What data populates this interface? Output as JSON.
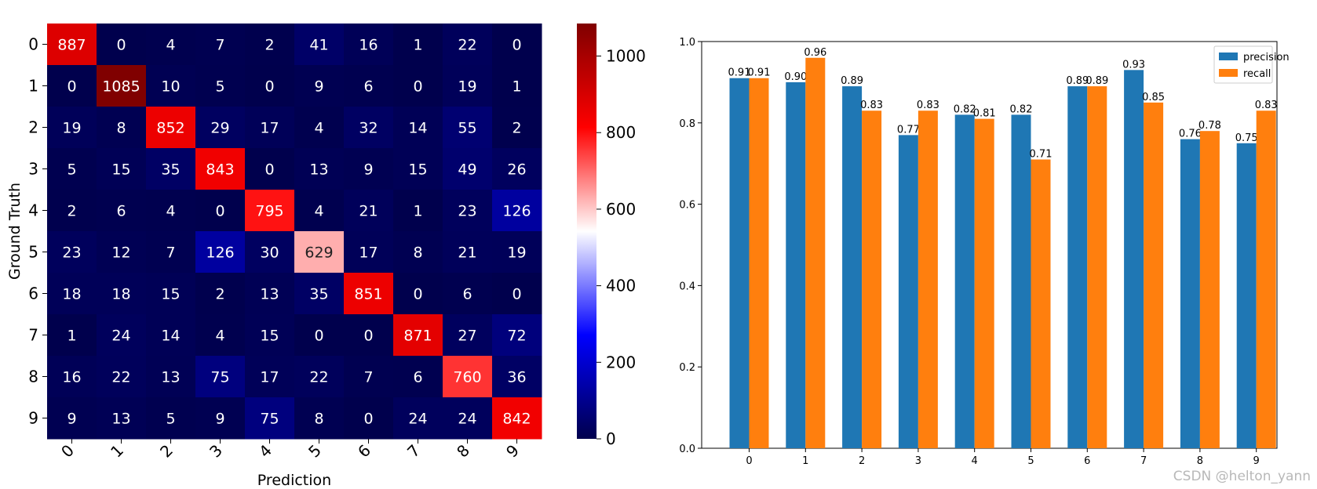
{
  "chart_data": [
    {
      "type": "heatmap",
      "xlabel": "Prediction",
      "ylabel": "Ground Truth",
      "x_tick_labels": [
        "0",
        "1",
        "2",
        "3",
        "4",
        "5",
        "6",
        "7",
        "8",
        "9"
      ],
      "y_tick_labels": [
        "0",
        "1",
        "2",
        "3",
        "4",
        "5",
        "6",
        "7",
        "8",
        "9"
      ],
      "matrix": [
        [
          887,
          0,
          4,
          7,
          2,
          41,
          16,
          1,
          22,
          0
        ],
        [
          0,
          1085,
          10,
          5,
          0,
          9,
          6,
          0,
          19,
          1
        ],
        [
          19,
          8,
          852,
          29,
          17,
          4,
          32,
          14,
          55,
          2
        ],
        [
          5,
          15,
          35,
          843,
          0,
          13,
          9,
          15,
          49,
          26
        ],
        [
          2,
          6,
          4,
          0,
          795,
          4,
          21,
          1,
          23,
          126
        ],
        [
          23,
          12,
          7,
          126,
          30,
          629,
          17,
          8,
          21,
          19
        ],
        [
          18,
          18,
          15,
          2,
          13,
          35,
          851,
          0,
          6,
          0
        ],
        [
          1,
          24,
          14,
          4,
          15,
          0,
          0,
          871,
          27,
          72
        ],
        [
          16,
          22,
          13,
          75,
          17,
          22,
          7,
          6,
          760,
          36
        ],
        [
          9,
          13,
          5,
          9,
          75,
          8,
          0,
          24,
          24,
          842
        ]
      ],
      "colormap": "seismic",
      "vmin": 0,
      "vmax": 1085,
      "colorbar_ticks": [
        0,
        200,
        400,
        600,
        800,
        1000
      ]
    },
    {
      "type": "bar",
      "categories": [
        "0",
        "1",
        "2",
        "3",
        "4",
        "5",
        "6",
        "7",
        "8",
        "9"
      ],
      "series": [
        {
          "name": "precision",
          "color": "#1f77b4",
          "values": [
            0.91,
            0.9,
            0.89,
            0.77,
            0.82,
            0.82,
            0.89,
            0.93,
            0.76,
            0.75
          ],
          "labels": [
            "0.91",
            "0.90",
            "0.89",
            "0.77",
            "0.82",
            "0.82",
            "0.89",
            "0.93",
            "0.76",
            "0.75"
          ]
        },
        {
          "name": "recall",
          "color": "#ff7f0e",
          "values": [
            0.91,
            0.96,
            0.83,
            0.83,
            0.81,
            0.71,
            0.89,
            0.85,
            0.78,
            0.83
          ],
          "labels": [
            "0.91",
            "0.96",
            "0.83",
            "0.83",
            "0.81",
            "0.71",
            "0.89",
            "0.85",
            "0.78",
            "0.83"
          ]
        }
      ],
      "ylim": [
        0,
        1.0
      ],
      "y_ticks": [
        "0.0",
        "0.2",
        "0.4",
        "0.6",
        "0.8",
        "1.0"
      ],
      "legend_position": "top-right"
    }
  ],
  "watermark": "CSDN @helton_yann"
}
